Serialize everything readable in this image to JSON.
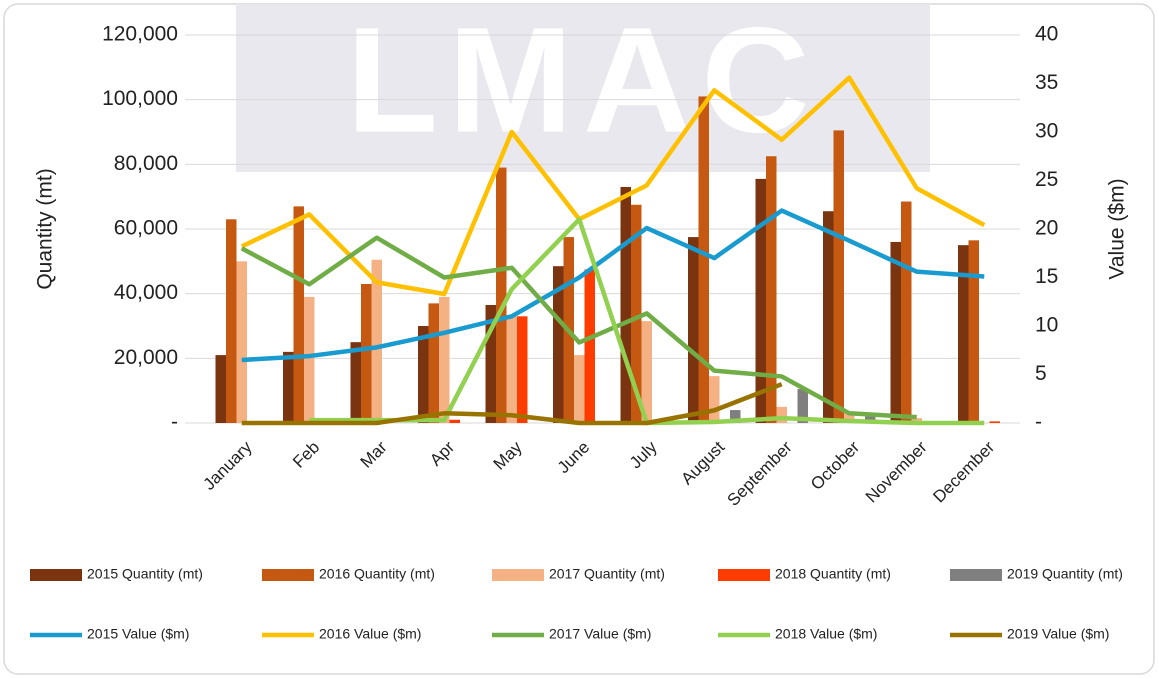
{
  "chart_data": {
    "type": "bar_line",
    "watermark": "LMAC",
    "y_label": "Quantity (mt)",
    "y2_label": "Value ($m)",
    "categories": [
      "January",
      "Feb",
      "Mar",
      "Apr",
      "May",
      "June",
      "July",
      "August",
      "September",
      "October",
      "November",
      "December"
    ],
    "ylim": [
      0,
      120000
    ],
    "yticks": [
      {
        "value": 0,
        "label": "-"
      },
      {
        "value": 20000,
        "label": "20,000"
      },
      {
        "value": 40000,
        "label": "40,000"
      },
      {
        "value": 60000,
        "label": "60,000"
      },
      {
        "value": 80000,
        "label": "80,000"
      },
      {
        "value": 100000,
        "label": "100,000"
      },
      {
        "value": 120000,
        "label": "120,000"
      }
    ],
    "y2lim": [
      0,
      40
    ],
    "y2ticks": [
      {
        "value": 0,
        "label": "-"
      },
      5,
      10,
      15,
      20,
      25,
      30,
      35,
      40
    ],
    "grid": true,
    "series": [
      {
        "name": "2015 Quantity (mt)",
        "kind": "bar",
        "color": "#7b3410",
        "values": [
          21000,
          22000,
          25000,
          30000,
          36500,
          48500,
          73000,
          57500,
          75500,
          65500,
          56000,
          55000
        ]
      },
      {
        "name": "2016 Quantity (mt)",
        "kind": "bar",
        "color": "#c65911",
        "values": [
          63000,
          67000,
          43000,
          37000,
          79000,
          57500,
          67500,
          101000,
          82500,
          90500,
          68500,
          56500
        ]
      },
      {
        "name": "2017 Quantity (mt)",
        "kind": "bar",
        "color": "#f4b183",
        "values": [
          50000,
          39000,
          50500,
          39000,
          33000,
          21000,
          31500,
          14500,
          5000,
          3000,
          1500,
          0
        ]
      },
      {
        "name": "2018 Quantity (mt)",
        "kind": "bar",
        "color": "#ff3c00",
        "values": [
          0,
          0,
          0,
          1000,
          33000,
          47500,
          0,
          0,
          0,
          0,
          0,
          500
        ]
      },
      {
        "name": "2019 Quantity (mt)",
        "kind": "bar",
        "color": "#7f7f7f",
        "values": [
          0,
          0,
          0,
          0,
          0,
          0,
          0,
          4000,
          10500,
          2000,
          0,
          0
        ]
      },
      {
        "name": "2015 Value ($m)",
        "kind": "line",
        "axis": "y2",
        "color": "#1a9bcf",
        "values": [
          6.5,
          6.9,
          7.8,
          9.3,
          11,
          15,
          20.1,
          17,
          21.9,
          18.8,
          15.6,
          15.1
        ]
      },
      {
        "name": "2016 Value ($m)",
        "kind": "line",
        "axis": "y2",
        "color": "#ffc000",
        "values": [
          18.2,
          21.5,
          14.5,
          13.3,
          30,
          21,
          24.5,
          34.3,
          29.2,
          35.6,
          24.2,
          20.4
        ]
      },
      {
        "name": "2017 Value ($m)",
        "kind": "line",
        "axis": "y2",
        "color": "#70ad47",
        "values": [
          18,
          14.3,
          19.1,
          15,
          16,
          8.3,
          11.3,
          5.4,
          4.8,
          1,
          0.6,
          null
        ]
      },
      {
        "name": "2018 Value ($m)",
        "kind": "line",
        "axis": "y2",
        "color": "#92d050",
        "values": [
          null,
          0.3,
          0.3,
          0.3,
          13.8,
          21,
          0,
          0.1,
          0.5,
          0.2,
          0,
          0
        ]
      },
      {
        "name": "2019 Value ($m)",
        "kind": "line",
        "axis": "y2",
        "color": "#997300",
        "values": [
          0,
          0,
          0,
          1,
          0.8,
          0,
          0,
          1.3,
          4,
          null,
          null,
          null
        ]
      }
    ]
  }
}
